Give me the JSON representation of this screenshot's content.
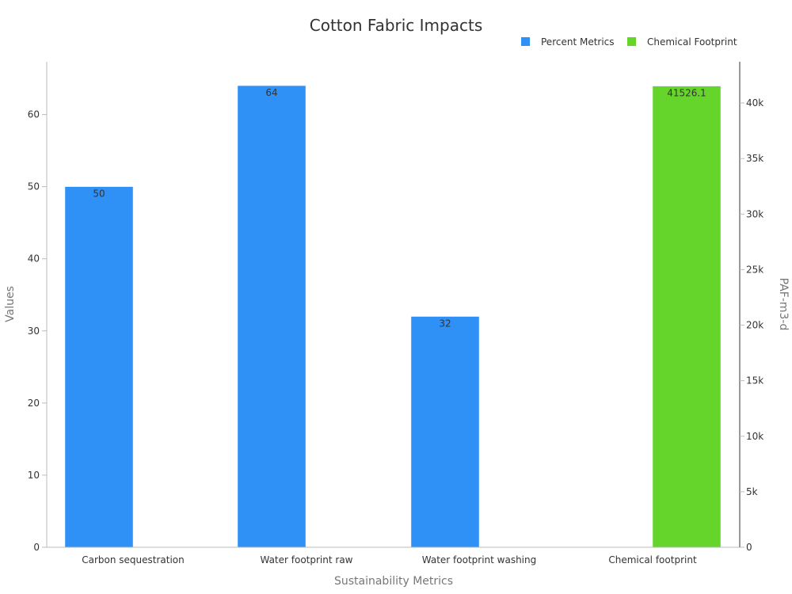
{
  "chart_data": {
    "type": "bar",
    "title": "Cotton Fabric Impacts",
    "xlabel": "Sustainability Metrics",
    "ylabel": "Values",
    "y2label": "PAF-m3-d",
    "categories": [
      "Carbon sequestration",
      "Water footprint raw",
      "Water footprint washing",
      "Chemical footprint"
    ],
    "ylim": [
      0,
      70
    ],
    "y2lim": [
      0,
      45000
    ],
    "yticks": [
      0,
      10,
      20,
      30,
      40,
      50,
      60
    ],
    "y2ticks": [
      0,
      5000,
      10000,
      15000,
      20000,
      25000,
      30000,
      35000,
      40000
    ],
    "y2ticklabels": [
      "0",
      "5k",
      "10k",
      "15k",
      "20k",
      "25k",
      "30k",
      "35k",
      "40k"
    ],
    "grid": false,
    "legend_position": "top-right",
    "series": [
      {
        "name": "Percent Metrics",
        "axis": "left",
        "color": "#2f90f6",
        "values": [
          50,
          64,
          32,
          null
        ],
        "labels": [
          "50",
          "64",
          "32",
          ""
        ]
      },
      {
        "name": "Chemical Footprint",
        "axis": "right",
        "color": "#66d52b",
        "values": [
          null,
          null,
          null,
          41526.1
        ],
        "labels": [
          "",
          "",
          "",
          "41526.1"
        ]
      }
    ]
  }
}
